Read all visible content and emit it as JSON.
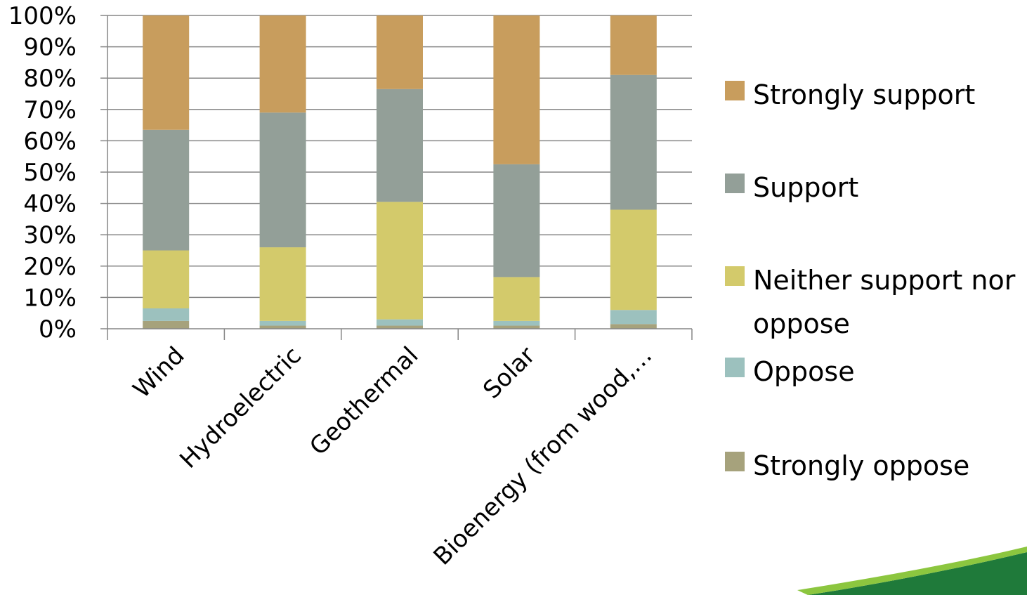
{
  "chart_data": {
    "type": "bar",
    "stacked": true,
    "normalized_percent": true,
    "title": "",
    "xlabel": "",
    "ylabel": "",
    "ylim": [
      0,
      100
    ],
    "y_ticks": [
      "0%",
      "10%",
      "20%",
      "30%",
      "40%",
      "50%",
      "60%",
      "70%",
      "80%",
      "90%",
      "100%"
    ],
    "categories": [
      "Wind",
      "Hydroelectric",
      "Geothermal",
      "Solar",
      "Bioenergy (from wood,…"
    ],
    "series": [
      {
        "name": "Strongly oppose",
        "color": "#a6a27c",
        "values": [
          2.5,
          1,
          1,
          1,
          1.5
        ]
      },
      {
        "name": "Oppose",
        "color": "#9cc1be",
        "values": [
          4,
          1.5,
          2,
          1.5,
          4.5
        ]
      },
      {
        "name": "Neither support nor oppose",
        "color": "#d3ca6b",
        "values": [
          18.5,
          23.5,
          37.5,
          14,
          32
        ]
      },
      {
        "name": "Support",
        "color": "#939f98",
        "values": [
          38.5,
          43,
          36,
          36,
          43
        ]
      },
      {
        "name": "Strongly support",
        "color": "#c89d5d",
        "values": [
          36.5,
          31,
          23.5,
          47.5,
          19
        ]
      }
    ],
    "legend": {
      "position": "right",
      "order": [
        "Strongly support",
        "Support",
        "Neither support nor oppose",
        "Oppose",
        "Strongly oppose"
      ]
    },
    "grid": true
  },
  "legend_labels": {
    "strongly_support": "Strongly support",
    "support": "Support",
    "neither": "Neither support nor oppose",
    "oppose": "Oppose",
    "strongly_oppose": "Strongly oppose"
  },
  "colors": {
    "gridline": "#868686",
    "axis": "#868686",
    "accent_dark_green": "#1f7a3a",
    "accent_light_green": "#8cc63f"
  }
}
